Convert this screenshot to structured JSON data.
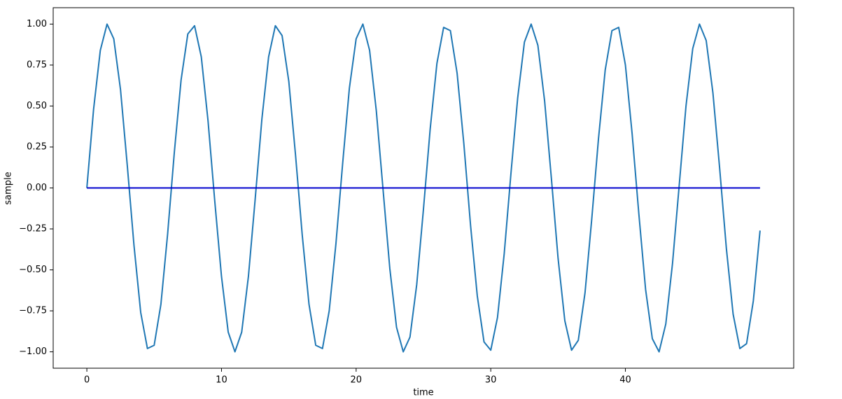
{
  "chart_data": {
    "type": "line",
    "xlabel": "time",
    "ylabel": "sample",
    "xlim": [
      -2.5,
      52.5
    ],
    "ylim": [
      -1.1,
      1.1
    ],
    "xticks": [
      0,
      10,
      20,
      30,
      40
    ],
    "yticks": [
      {
        "value": -1,
        "label": "−1.00"
      },
      {
        "value": -0.75,
        "label": "−0.75"
      },
      {
        "value": -0.5,
        "label": "−0.50"
      },
      {
        "value": -0.25,
        "label": "−0.25"
      },
      {
        "value": 0,
        "label": "0.00"
      },
      {
        "value": 0.25,
        "label": "0.25"
      },
      {
        "value": 0.5,
        "label": "0.50"
      },
      {
        "value": 0.75,
        "label": "0.75"
      },
      {
        "value": 1,
        "label": "1.00"
      }
    ],
    "grid": false,
    "series": [
      {
        "color": "#1f77b4",
        "x": [
          0,
          0.5,
          1,
          1.5,
          2,
          2.5,
          3,
          3.5,
          4,
          4.5,
          5,
          5.5,
          6,
          6.5,
          7,
          7.5,
          8,
          8.5,
          9,
          9.5,
          10,
          10.5,
          11,
          11.5,
          12,
          12.5,
          13,
          13.5,
          14,
          14.5,
          15,
          15.5,
          16,
          16.5,
          17,
          17.5,
          18,
          18.5,
          19,
          19.5,
          20,
          20.5,
          21,
          21.5,
          22,
          22.5,
          23,
          23.5,
          24,
          24.5,
          25,
          25.5,
          26,
          26.5,
          27,
          27.5,
          28,
          28.5,
          29,
          29.5,
          30,
          30.5,
          31,
          31.5,
          32,
          32.5,
          33,
          33.5,
          34,
          34.5,
          35,
          35.5,
          36,
          36.5,
          37,
          37.5,
          38,
          38.5,
          39,
          39.5,
          40,
          40.5,
          41,
          41.5,
          42,
          42.5,
          43,
          43.5,
          44,
          44.5,
          45,
          45.5,
          46,
          46.5,
          47,
          47.5,
          48,
          48.5,
          49,
          49.5,
          50
        ],
        "values": [
          0,
          0.48,
          0.84,
          1.0,
          0.91,
          0.6,
          0.14,
          -0.35,
          -0.76,
          -0.98,
          -0.96,
          -0.71,
          -0.28,
          0.22,
          0.66,
          0.94,
          0.99,
          0.8,
          0.41,
          -0.08,
          -0.54,
          -0.88,
          -1.0,
          -0.88,
          -0.54,
          -0.07,
          0.42,
          0.8,
          0.99,
          0.93,
          0.65,
          0.2,
          -0.29,
          -0.71,
          -0.96,
          -0.98,
          -0.75,
          -0.34,
          0.15,
          0.61,
          0.91,
          1.0,
          0.84,
          0.47,
          -0.01,
          -0.49,
          -0.85,
          -1.0,
          -0.91,
          -0.59,
          -0.13,
          0.36,
          0.76,
          0.98,
          0.96,
          0.7,
          0.27,
          -0.23,
          -0.66,
          -0.94,
          -0.99,
          -0.79,
          -0.4,
          0.09,
          0.55,
          0.89,
          1.0,
          0.87,
          0.53,
          0.06,
          -0.43,
          -0.81,
          -0.99,
          -0.93,
          -0.64,
          -0.19,
          0.3,
          0.72,
          0.96,
          0.98,
          0.75,
          0.33,
          -0.16,
          -0.62,
          -0.92,
          -1.0,
          -0.83,
          -0.46,
          0.02,
          0.5,
          0.85,
          1.0,
          0.9,
          0.58,
          0.12,
          -0.37,
          -0.77,
          -0.98,
          -0.95,
          -0.69,
          -0.26
        ]
      },
      {
        "color": "#0000cd",
        "x": [
          0,
          50
        ],
        "values": [
          0,
          0
        ]
      }
    ]
  }
}
